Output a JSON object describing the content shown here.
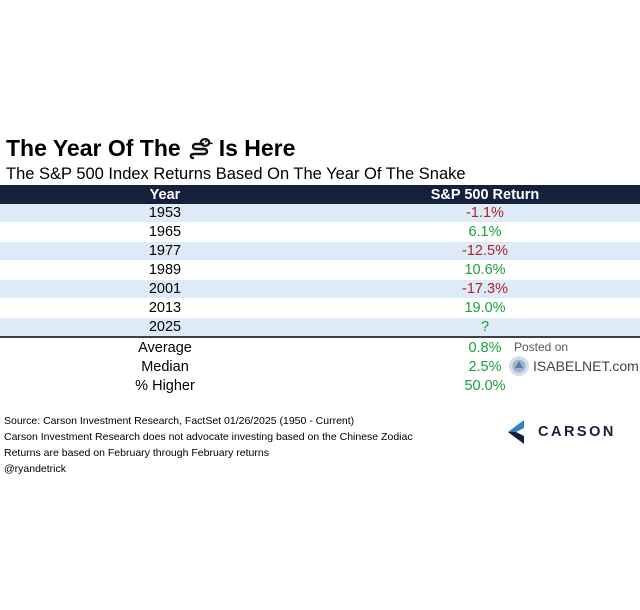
{
  "header": {
    "title_before": "The Year Of The",
    "title_emoji": "🐍",
    "title_icon": "snake-emoji-icon",
    "title_after": "Is Here",
    "subtitle": "The S&P 500 Index Returns Based On The Year Of The Snake"
  },
  "chart_data": {
    "type": "table",
    "columns": [
      "Year",
      "S&P 500 Return"
    ],
    "rows": [
      {
        "year": "1953",
        "return": "-1.1%",
        "value": -1.1
      },
      {
        "year": "1965",
        "return": "6.1%",
        "value": 6.1
      },
      {
        "year": "1977",
        "return": "-12.5%",
        "value": -12.5
      },
      {
        "year": "1989",
        "return": "10.6%",
        "value": 10.6
      },
      {
        "year": "2001",
        "return": "-17.3%",
        "value": -17.3
      },
      {
        "year": "2013",
        "return": "19.0%",
        "value": 19.0
      },
      {
        "year": "2025",
        "return": "?",
        "value": null
      }
    ],
    "summary": [
      {
        "label": "Average",
        "value": "0.8%"
      },
      {
        "label": "Median",
        "value": "2.5%"
      },
      {
        "label": "% Higher",
        "value": "50.0%"
      }
    ]
  },
  "footer": {
    "source_lines": [
      "Source: Carson Investment Research, FactSet 01/26/2025 (1950 - Current)",
      "Carson Investment Research does not advocate investing based on the Chinese Zodiac",
      "Returns are based on February through February returns",
      "@ryandetrick"
    ]
  },
  "watermark": {
    "posted": "Posted on",
    "site": "ISABELNET.com"
  },
  "logo": {
    "name": "CARSON"
  },
  "colors": {
    "header_bg": "#14213d",
    "band": "#dcebf7",
    "negative": "#b22222",
    "positive": "#1a9e3c"
  }
}
